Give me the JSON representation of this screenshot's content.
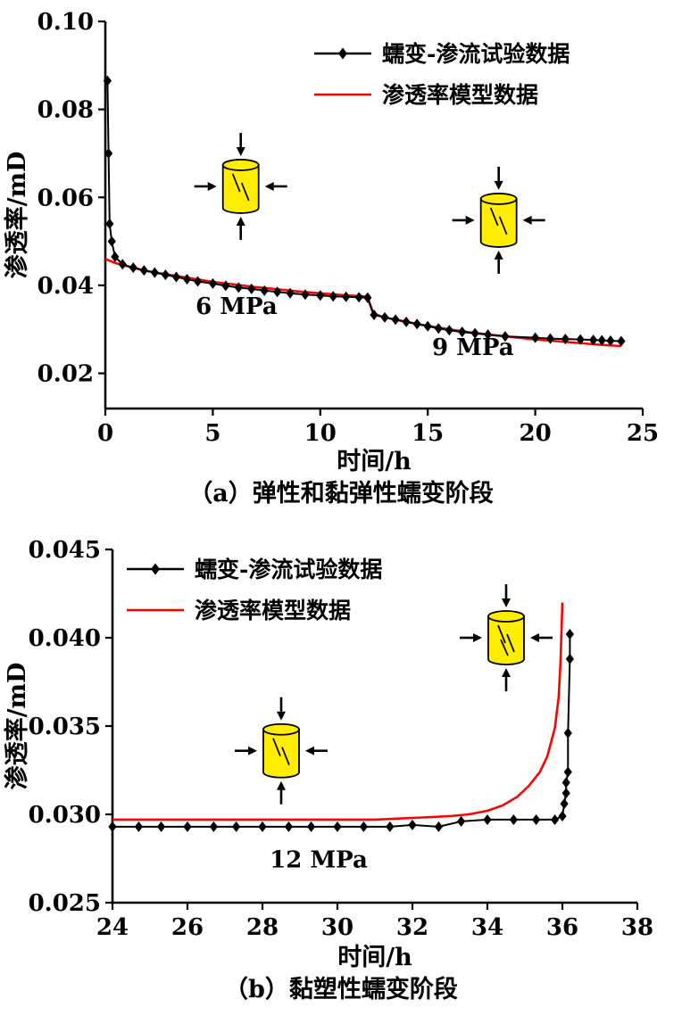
{
  "figure": {
    "background": "#ffffff"
  },
  "colors": {
    "axis": "#000000",
    "experiment_series": "#000000",
    "model_series": "#ff0000",
    "specimen_fill": "#ffee00"
  },
  "chart_data": [
    {
      "type": "line",
      "caption": "（a）弹性和黏弹性蠕变阶段",
      "xlabel": "时间/h",
      "ylabel": "渗透率/mD",
      "xlim": [
        0,
        25
      ],
      "ylim": [
        0.012,
        0.1
      ],
      "xticks": [
        0,
        5,
        10,
        15,
        20,
        25
      ],
      "xtick_labels": [
        "0",
        "5",
        "10",
        "15",
        "20",
        "25"
      ],
      "yticks": [
        0.02,
        0.04,
        0.06,
        0.08,
        0.1
      ],
      "ytick_labels": [
        "0.02",
        "0.04",
        "0.06",
        "0.08",
        "0.10"
      ],
      "grid": false,
      "legend_position": "top-right",
      "series": [
        {
          "name": "蠕变-渗流试验数据",
          "color": "#000000",
          "marker": "diamond",
          "points": [
            [
              0.1,
              0.0865
            ],
            [
              0.15,
              0.07
            ],
            [
              0.2,
              0.054
            ],
            [
              0.3,
              0.05
            ],
            [
              0.45,
              0.0465
            ],
            [
              0.8,
              0.0448
            ],
            [
              1.3,
              0.044
            ],
            [
              1.8,
              0.0434
            ],
            [
              2.3,
              0.0429
            ],
            [
              2.8,
              0.0424
            ],
            [
              3.3,
              0.0419
            ],
            [
              3.8,
              0.0414
            ],
            [
              4.3,
              0.0409
            ],
            [
              5,
              0.0404
            ],
            [
              5.6,
              0.0399
            ],
            [
              6.2,
              0.0395
            ],
            [
              6.8,
              0.0392
            ],
            [
              7.4,
              0.0388
            ],
            [
              8,
              0.0385
            ],
            [
              8.6,
              0.0382
            ],
            [
              9.3,
              0.0379
            ],
            [
              10,
              0.0377
            ],
            [
              10.6,
              0.0375
            ],
            [
              11.2,
              0.0374
            ],
            [
              11.8,
              0.0373
            ],
            [
              12.2,
              0.0372
            ],
            [
              12.5,
              0.0333
            ],
            [
              13,
              0.0327
            ],
            [
              13.5,
              0.0322
            ],
            [
              14,
              0.0317
            ],
            [
              14.5,
              0.0312
            ],
            [
              15,
              0.0307
            ],
            [
              15.5,
              0.0302
            ],
            [
              16,
              0.0298
            ],
            [
              16.6,
              0.0294
            ],
            [
              17.2,
              0.0291
            ],
            [
              17.8,
              0.0288
            ],
            [
              18.6,
              0.0284
            ],
            [
              20,
              0.0281
            ],
            [
              20.7,
              0.0279
            ],
            [
              21.4,
              0.0278
            ],
            [
              22.1,
              0.0277
            ],
            [
              22.7,
              0.0276
            ],
            [
              23.1,
              0.0275
            ],
            [
              23.5,
              0.0274
            ],
            [
              24,
              0.0273
            ]
          ]
        },
        {
          "name": "渗透率模型数据",
          "color": "#ff0000",
          "marker": "none",
          "points": [
            [
              0,
              0.046
            ],
            [
              0.4,
              0.0452
            ],
            [
              0.8,
              0.0446
            ],
            [
              1.3,
              0.044
            ],
            [
              2,
              0.0432
            ],
            [
              3,
              0.0424
            ],
            [
              4,
              0.0416
            ],
            [
              5,
              0.0408
            ],
            [
              6,
              0.0402
            ],
            [
              7,
              0.0396
            ],
            [
              8,
              0.0391
            ],
            [
              9,
              0.0386
            ],
            [
              10,
              0.0382
            ],
            [
              11,
              0.0378
            ],
            [
              12,
              0.0375
            ],
            [
              12.2,
              0.0373
            ],
            [
              12.45,
              0.0337
            ],
            [
              12.8,
              0.033
            ],
            [
              13.2,
              0.0325
            ],
            [
              14,
              0.0317
            ],
            [
              15,
              0.0308
            ],
            [
              16,
              0.03
            ],
            [
              17,
              0.0293
            ],
            [
              18,
              0.0287
            ],
            [
              19,
              0.0282
            ],
            [
              20,
              0.0277
            ],
            [
              21,
              0.0273
            ],
            [
              22,
              0.0269
            ],
            [
              23,
              0.0265
            ],
            [
              24,
              0.0262
            ]
          ]
        }
      ],
      "annotations": [
        {
          "text": "6 MPa",
          "x": 6.1,
          "y": 0.0335
        },
        {
          "text": "9 MPa",
          "x": 17.1,
          "y": 0.0242
        }
      ],
      "specimen_icons": [
        {
          "x": 6.3,
          "y": 0.0625,
          "cracks": 2
        },
        {
          "x": 18.3,
          "y": 0.0548,
          "cracks": 2
        }
      ]
    },
    {
      "type": "line",
      "caption": "（b）黏塑性蠕变阶段",
      "xlabel": "时间/h",
      "ylabel": "渗透率/mD",
      "xlim": [
        24,
        38
      ],
      "ylim": [
        0.025,
        0.045
      ],
      "xticks": [
        24,
        26,
        28,
        30,
        32,
        34,
        36,
        38
      ],
      "xtick_labels": [
        "24",
        "26",
        "28",
        "30",
        "32",
        "34",
        "36",
        "38"
      ],
      "yticks": [
        0.025,
        0.03,
        0.035,
        0.04,
        0.045
      ],
      "ytick_labels": [
        "0.025",
        "0.030",
        "0.035",
        "0.040",
        "0.045"
      ],
      "grid": false,
      "legend_position": "top-left",
      "series": [
        {
          "name": "蠕变-渗流试验数据",
          "color": "#000000",
          "marker": "diamond",
          "points": [
            [
              24,
              0.0293
            ],
            [
              24.7,
              0.0293
            ],
            [
              25.3,
              0.0293
            ],
            [
              26,
              0.0293
            ],
            [
              26.7,
              0.0293
            ],
            [
              27.3,
              0.0293
            ],
            [
              28,
              0.0293
            ],
            [
              28.7,
              0.0293
            ],
            [
              29.3,
              0.0293
            ],
            [
              30,
              0.0293
            ],
            [
              30.7,
              0.0293
            ],
            [
              31.4,
              0.0293
            ],
            [
              32,
              0.0294
            ],
            [
              32.7,
              0.0293
            ],
            [
              33.3,
              0.0296
            ],
            [
              34,
              0.0297
            ],
            [
              34.7,
              0.0297
            ],
            [
              35.3,
              0.0297
            ],
            [
              35.8,
              0.0297
            ],
            [
              36,
              0.0299
            ],
            [
              36.05,
              0.0306
            ],
            [
              36.1,
              0.0312
            ],
            [
              36.1,
              0.0318
            ],
            [
              36.15,
              0.0324
            ],
            [
              36.15,
              0.0346
            ],
            [
              36.2,
              0.0388
            ],
            [
              36.2,
              0.0402
            ]
          ]
        },
        {
          "name": "渗透率模型数据",
          "color": "#ff0000",
          "marker": "none",
          "points": [
            [
              24,
              0.0297
            ],
            [
              25,
              0.0297
            ],
            [
              26,
              0.0297
            ],
            [
              27,
              0.0297
            ],
            [
              28,
              0.0297
            ],
            [
              29,
              0.0297
            ],
            [
              30,
              0.0297
            ],
            [
              31,
              0.0297
            ],
            [
              32,
              0.0298
            ],
            [
              33,
              0.0299
            ],
            [
              33.5,
              0.03
            ],
            [
              34,
              0.0302
            ],
            [
              34.4,
              0.0305
            ],
            [
              34.8,
              0.031
            ],
            [
              35.1,
              0.0316
            ],
            [
              35.4,
              0.0324
            ],
            [
              35.6,
              0.0333
            ],
            [
              35.8,
              0.0349
            ],
            [
              35.9,
              0.0366
            ],
            [
              35.95,
              0.0386
            ],
            [
              36,
              0.042
            ]
          ]
        }
      ],
      "annotations": [
        {
          "text": "12 MPa",
          "x": 29.5,
          "y": 0.027
        }
      ],
      "specimen_icons": [
        {
          "x": 28.5,
          "y": 0.0336,
          "cracks": 2
        },
        {
          "x": 34.5,
          "y": 0.04,
          "cracks": 3
        }
      ]
    }
  ]
}
